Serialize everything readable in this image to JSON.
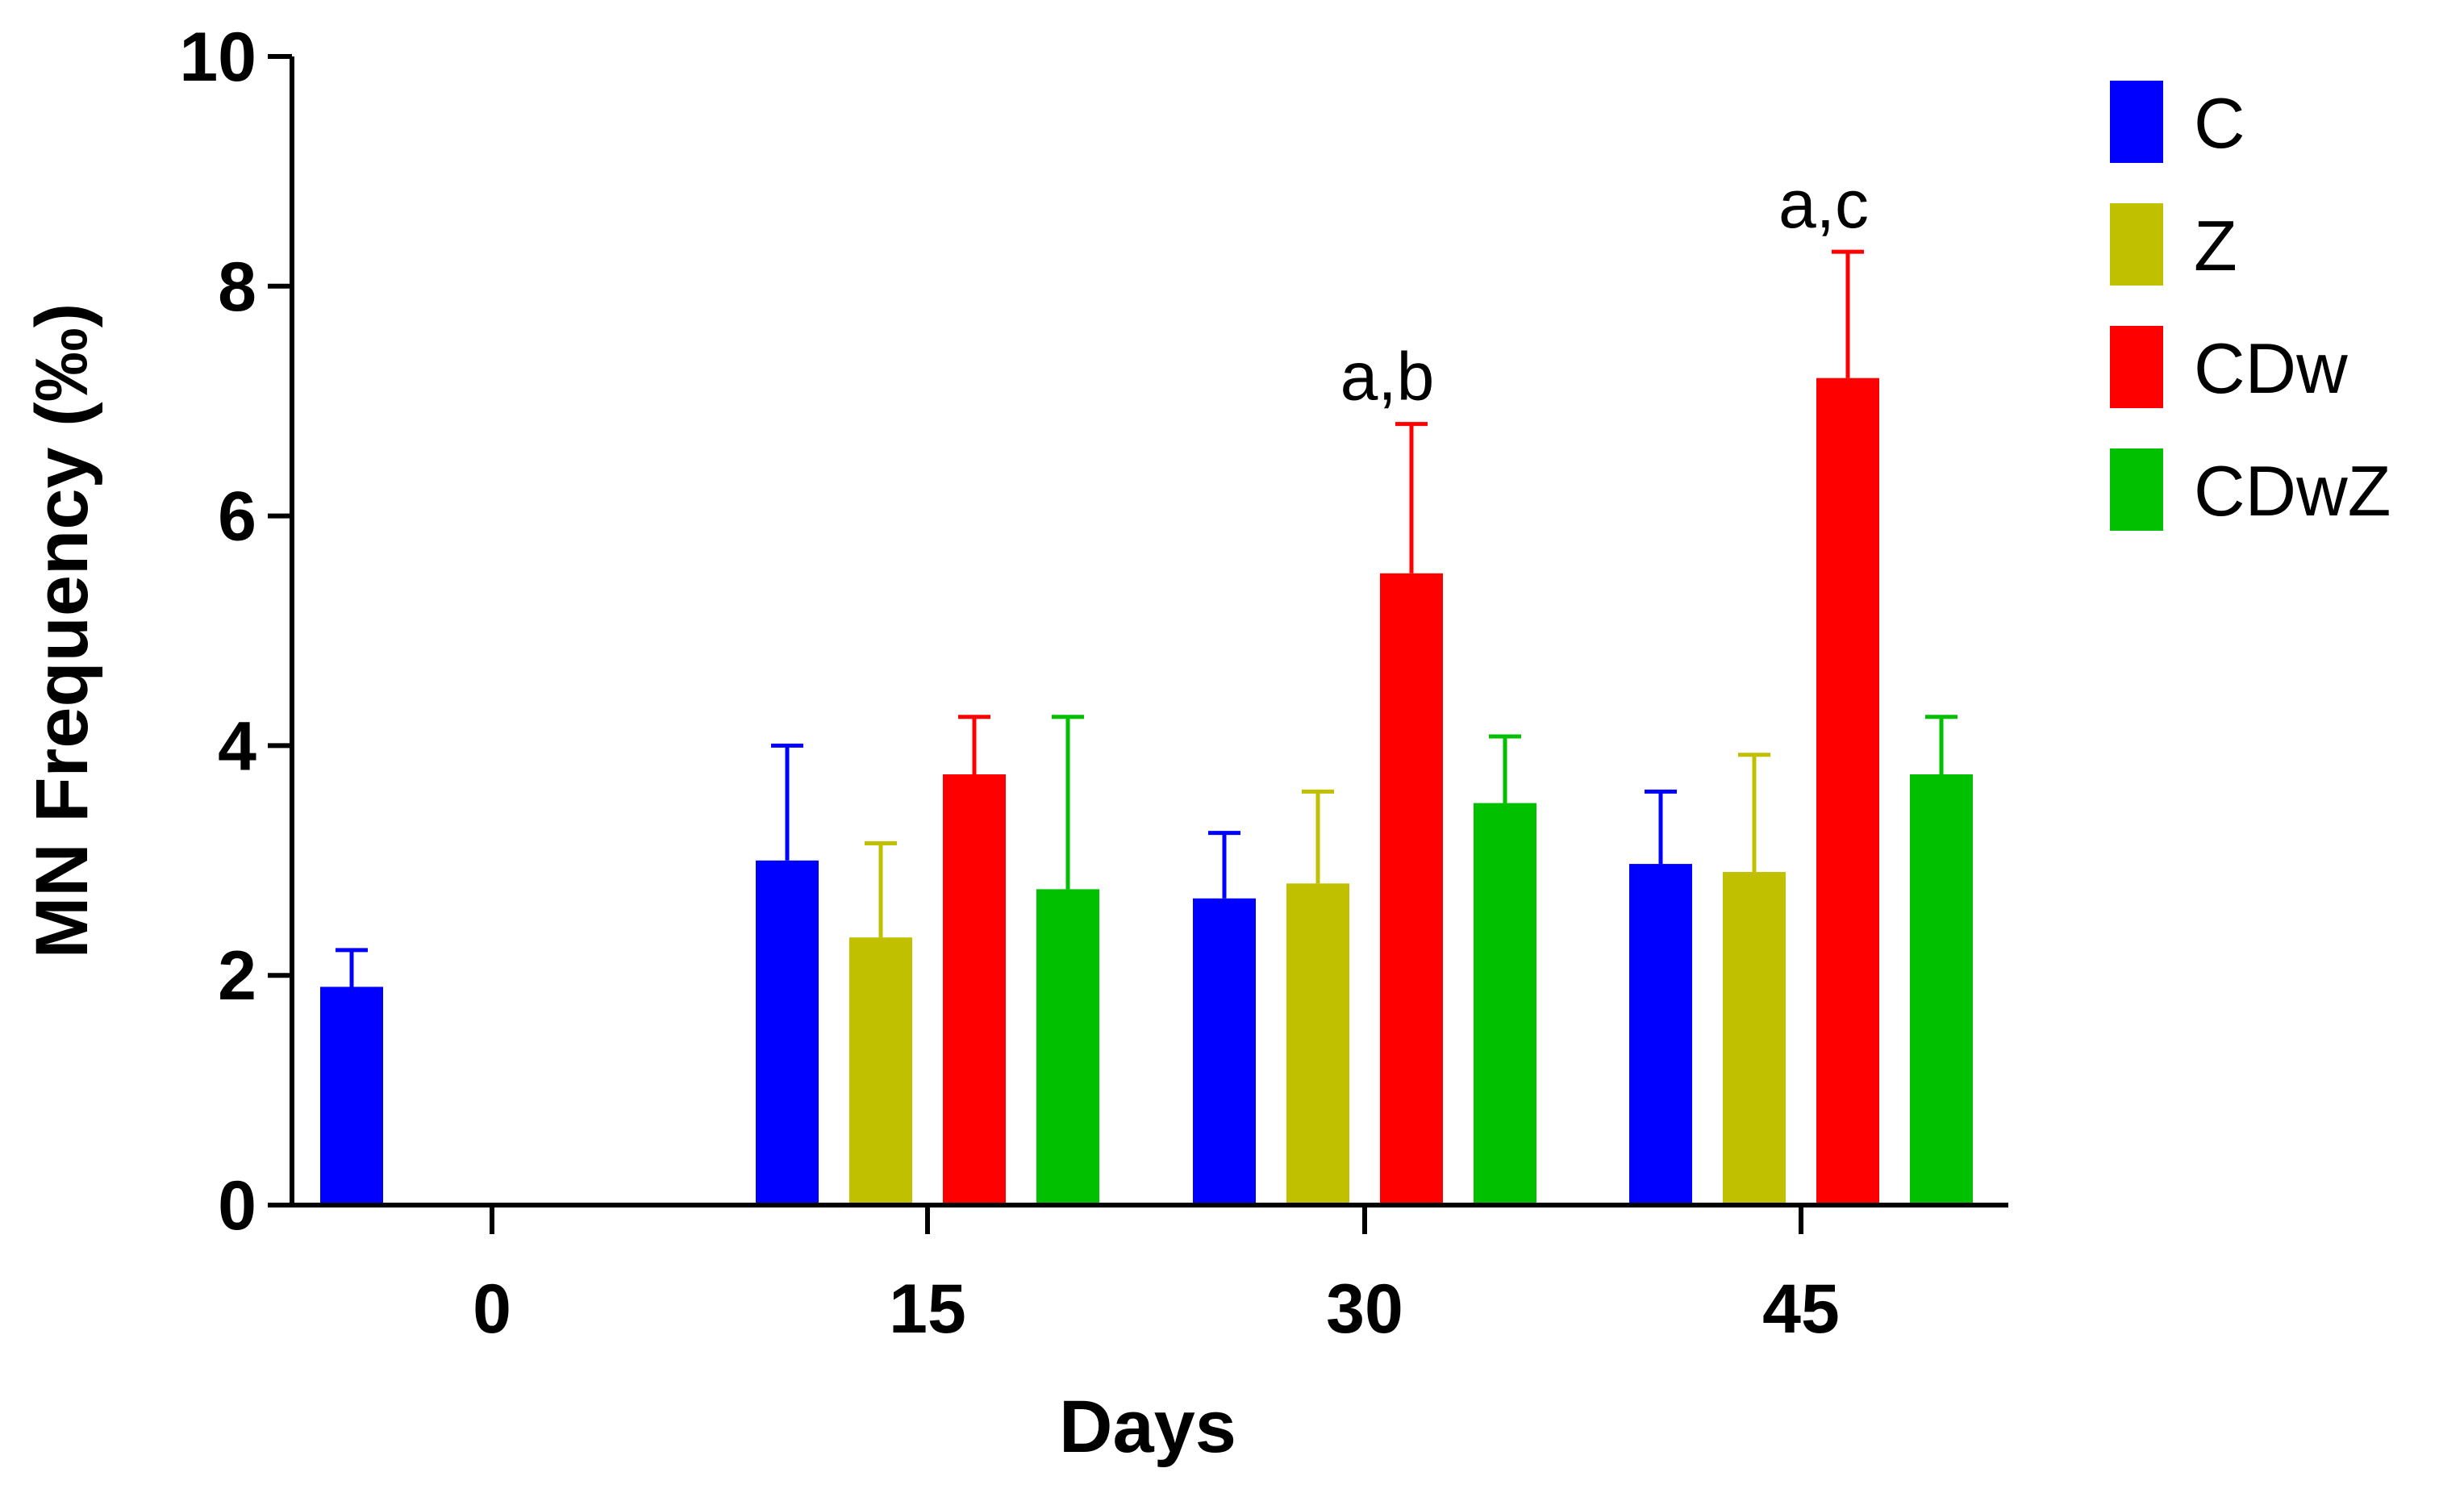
{
  "chart_data": {
    "type": "bar",
    "title": "",
    "xlabel": "Days",
    "ylabel": "MN Frequency (‰)",
    "ylim": [
      0,
      10
    ],
    "yticks": [
      0,
      2,
      4,
      6,
      8,
      10
    ],
    "categories": [
      "0",
      "15",
      "30",
      "45"
    ],
    "series": [
      {
        "name": "C",
        "color": "#0000ff",
        "values": [
          1.9,
          3.0,
          2.67,
          2.97
        ],
        "errors": [
          0.32,
          1.0,
          0.57,
          0.63
        ]
      },
      {
        "name": "Z",
        "color": "#c0c000",
        "values": [
          null,
          2.33,
          2.8,
          2.9
        ],
        "errors": [
          null,
          0.82,
          0.8,
          1.02
        ]
      },
      {
        "name": "CDw",
        "color": "#ff0000",
        "values": [
          null,
          3.75,
          5.5,
          7.2
        ],
        "errors": [
          null,
          0.5,
          1.3,
          1.1
        ]
      },
      {
        "name": "CDwZ",
        "color": "#00c000",
        "values": [
          null,
          2.75,
          3.5,
          3.75
        ],
        "errors": [
          null,
          1.5,
          0.58,
          0.5
        ]
      }
    ],
    "annotations": [
      {
        "text": "a,b",
        "category": "30",
        "series": "CDw"
      },
      {
        "text": "a,c",
        "category": "45",
        "series": "CDw"
      }
    ],
    "legend_position": "top-right"
  }
}
